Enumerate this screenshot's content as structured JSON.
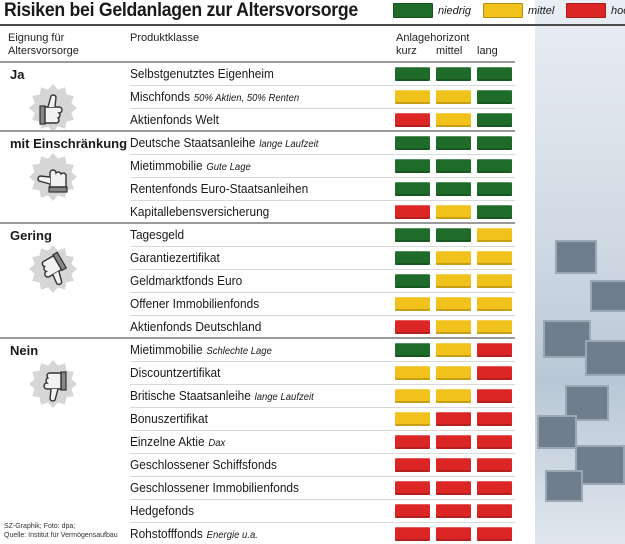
{
  "title": "Risiken bei Geldanlagen zur Altersvorsorge",
  "legend": [
    {
      "key": "niedrig",
      "label": "niedrig",
      "color": "#1f6b2a"
    },
    {
      "key": "mittel",
      "label": "mittel",
      "color": "#f1c21b"
    },
    {
      "key": "hoch",
      "label": "hoch",
      "color": "#dc2626"
    }
  ],
  "headers": {
    "eignung": "Eignung für Altersvorsorge",
    "produktklasse": "Produktklasse",
    "anlagehorizont": "Anlagehorizont",
    "horizons": [
      "kurz",
      "mittel",
      "lang"
    ]
  },
  "footer": {
    "line1": "SZ-Graphik; Foto: dpa;",
    "line2": "Quelle: Institut für Vermögensaufbau"
  },
  "chart_data": {
    "type": "table",
    "title": "Risiken bei Geldanlagen zur Altersvorsorge",
    "columns": [
      "kurz",
      "mittel",
      "lang"
    ],
    "column_group": "Anlagehorizont",
    "groups": [
      {
        "label": "Ja",
        "icon": "thumb-up-icon",
        "rows": [
          {
            "name": "Selbstgenutztes Eigenheim",
            "note": "",
            "risk": [
              "niedrig",
              "niedrig",
              "niedrig"
            ]
          },
          {
            "name": "Mischfonds",
            "note": "50% Aktien, 50% Renten",
            "risk": [
              "mittel",
              "mittel",
              "niedrig"
            ]
          },
          {
            "name": "Aktienfonds Welt",
            "note": "",
            "risk": [
              "hoch",
              "mittel",
              "niedrig"
            ]
          }
        ]
      },
      {
        "label": "mit Einschränkung",
        "icon": "thumb-sideways-icon",
        "rows": [
          {
            "name": "Deutsche Staatsanleihe",
            "note": "lange Laufzeit",
            "risk": [
              "niedrig",
              "niedrig",
              "niedrig"
            ]
          },
          {
            "name": "Mietimmobilie",
            "note": "Gute Lage",
            "risk": [
              "niedrig",
              "niedrig",
              "niedrig"
            ]
          },
          {
            "name": "Rentenfonds Euro-Staatsanleihen",
            "note": "",
            "risk": [
              "niedrig",
              "niedrig",
              "niedrig"
            ]
          },
          {
            "name": "Kapitallebensversicherung",
            "note": "",
            "risk": [
              "hoch",
              "mittel",
              "niedrig"
            ]
          }
        ]
      },
      {
        "label": "Gering",
        "icon": "thumb-down-tilted-icon",
        "rows": [
          {
            "name": "Tagesgeld",
            "note": "",
            "risk": [
              "niedrig",
              "niedrig",
              "mittel"
            ]
          },
          {
            "name": "Garantiezertifikat",
            "note": "",
            "risk": [
              "niedrig",
              "mittel",
              "mittel"
            ]
          },
          {
            "name": "Geldmarktfonds Euro",
            "note": "",
            "risk": [
              "niedrig",
              "mittel",
              "mittel"
            ]
          },
          {
            "name": "Offener Immobilienfonds",
            "note": "",
            "risk": [
              "mittel",
              "mittel",
              "mittel"
            ]
          },
          {
            "name": "Aktienfonds Deutschland",
            "note": "",
            "risk": [
              "hoch",
              "mittel",
              "mittel"
            ]
          }
        ]
      },
      {
        "label": "Nein",
        "icon": "thumb-down-icon",
        "rows": [
          {
            "name": "Mietimmobilie",
            "note": "Schlechte Lage",
            "risk": [
              "niedrig",
              "mittel",
              "hoch"
            ]
          },
          {
            "name": "Discountzertifikat",
            "note": "",
            "risk": [
              "mittel",
              "mittel",
              "hoch"
            ]
          },
          {
            "name": "Britische Staatsanleihe",
            "note": "lange Laufzeit",
            "risk": [
              "mittel",
              "mittel",
              "hoch"
            ]
          },
          {
            "name": "Bonuszertifikat",
            "note": "",
            "risk": [
              "mittel",
              "hoch",
              "hoch"
            ]
          },
          {
            "name": "Einzelne Aktie",
            "note": "Dax",
            "risk": [
              "hoch",
              "hoch",
              "hoch"
            ]
          },
          {
            "name": "Geschlossener Schiffsfonds",
            "note": "",
            "risk": [
              "hoch",
              "hoch",
              "hoch"
            ]
          },
          {
            "name": "Geschlossener Immobilienfonds",
            "note": "",
            "risk": [
              "hoch",
              "hoch",
              "hoch"
            ]
          },
          {
            "name": "Hedgefonds",
            "note": "",
            "risk": [
              "hoch",
              "hoch",
              "hoch"
            ]
          },
          {
            "name": "Rohstofffonds",
            "note": "Energie u.a.",
            "risk": [
              "hoch",
              "hoch",
              "hoch"
            ]
          }
        ]
      }
    ]
  }
}
